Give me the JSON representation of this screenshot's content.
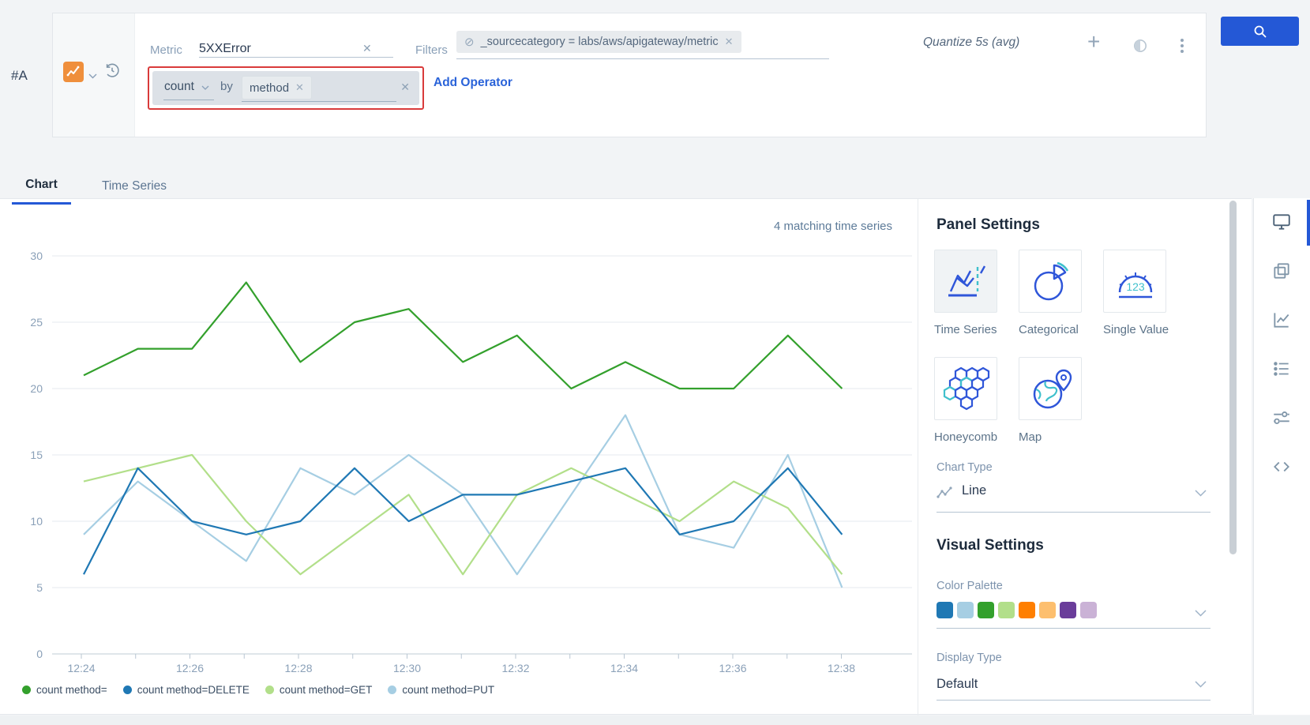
{
  "accent": {
    "blue": "#2458d6",
    "red": "#d93b3b"
  },
  "query_bar": {
    "row_label": "#A",
    "metric_label": "Metric",
    "metric_value": "5XXError",
    "clear_icon": "✕",
    "filters_label": "Filters",
    "filter_chip": {
      "no_entry_icon": "⊘",
      "text": "_sourcecategory = labs/aws/apigateway/metric",
      "remove_icon": "✕"
    },
    "operator_box": {
      "function": "count",
      "by": "by",
      "group": "method",
      "chip_remove_icon": "✕",
      "remove_icon": "✕"
    },
    "add_operator": "Add Operator",
    "quantize": "Quantize 5s (avg)",
    "plus_icon": "+"
  },
  "tabs": {
    "chart": "Chart",
    "time_series": "Time Series"
  },
  "chart_header": {
    "matching": "4 matching time series"
  },
  "chart_data": {
    "type": "line",
    "x_minutes": [
      "12:24",
      "12:25",
      "12:26",
      "12:27",
      "12:28",
      "12:29",
      "12:30",
      "12:31",
      "12:32",
      "12:33",
      "12:34",
      "12:35",
      "12:36",
      "12:37",
      "12:38"
    ],
    "xtick_labels": [
      "12:24",
      "12:26",
      "12:28",
      "12:30",
      "12:32",
      "12:34",
      "12:36",
      "12:38"
    ],
    "ylim": [
      0,
      30
    ],
    "yticks": [
      0,
      5,
      10,
      15,
      20,
      25,
      30
    ],
    "grid": "horizontal",
    "legend_position": "bottom-left",
    "series": [
      {
        "name": "count method=",
        "color": "#33a02c",
        "values": [
          21,
          23,
          23,
          28,
          22,
          25,
          26,
          22,
          24,
          20,
          22,
          20,
          20,
          24,
          20
        ]
      },
      {
        "name": "count method=DELETE",
        "color": "#1f78b4",
        "values": [
          6,
          14,
          10,
          9,
          10,
          14,
          10,
          12,
          12,
          13,
          14,
          9,
          10,
          14,
          9
        ]
      },
      {
        "name": "count method=GET",
        "color": "#b2df8a",
        "values": [
          13,
          14,
          15,
          10,
          6,
          9,
          12,
          6,
          12,
          14,
          12,
          10,
          13,
          11,
          6
        ]
      },
      {
        "name": "count method=PUT",
        "color": "#a6cee3",
        "values": [
          9,
          13,
          10,
          7,
          14,
          12,
          15,
          12,
          6,
          12,
          18,
          9,
          8,
          15,
          5
        ]
      }
    ]
  },
  "panel": {
    "title": "Panel Settings",
    "tiles": [
      {
        "label": "Time Series",
        "icon": "time-series",
        "selected": true
      },
      {
        "label": "Categorical",
        "icon": "categorical",
        "selected": false
      },
      {
        "label": "Single Value",
        "icon": "single-value",
        "selected": false
      },
      {
        "label": "Honeycomb",
        "icon": "honeycomb",
        "selected": false
      },
      {
        "label": "Map",
        "icon": "map",
        "selected": false
      }
    ],
    "chart_type": {
      "label": "Chart Type",
      "value": "Line"
    },
    "visual_title": "Visual Settings",
    "color_palette": {
      "label": "Color Palette",
      "colors": [
        "#1f78b4",
        "#a6cee3",
        "#33a02c",
        "#b2df8a",
        "#ff7f00",
        "#fdbf6f",
        "#6a3d9a",
        "#cab2d6"
      ]
    },
    "display_type": {
      "label": "Display Type",
      "value": "Default"
    }
  },
  "toolbar": {
    "items": [
      "display",
      "copy",
      "chart",
      "list",
      "tune",
      "code"
    ]
  }
}
